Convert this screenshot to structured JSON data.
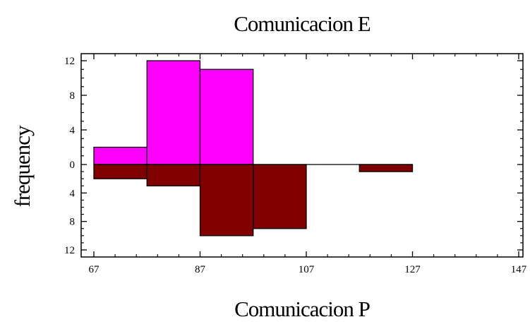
{
  "chart_data": {
    "type": "bar",
    "subtype": "dual-histogram (back-to-back)",
    "title": "Comunicacion E",
    "xlabel": "Comunicacion P",
    "ylabel": "frequency",
    "xlim": [
      67,
      147
    ],
    "ylim_upper": [
      0,
      12
    ],
    "ylim_lower": [
      0,
      12
    ],
    "x_ticks": [
      67,
      87,
      107,
      127,
      147
    ],
    "y_ticks_upper": [
      12,
      8,
      4,
      0
    ],
    "y_ticks_lower": [
      4,
      8,
      12
    ],
    "bin_edges": [
      67,
      77,
      87,
      97,
      107,
      117,
      127
    ],
    "series": [
      {
        "direction": "up",
        "color": "#ff00ff",
        "values": [
          2,
          12,
          11,
          0,
          0,
          0
        ]
      },
      {
        "direction": "down",
        "color": "#800000",
        "values": [
          2,
          3,
          10,
          9,
          0,
          1
        ]
      }
    ],
    "grid": false,
    "legend": "none"
  }
}
